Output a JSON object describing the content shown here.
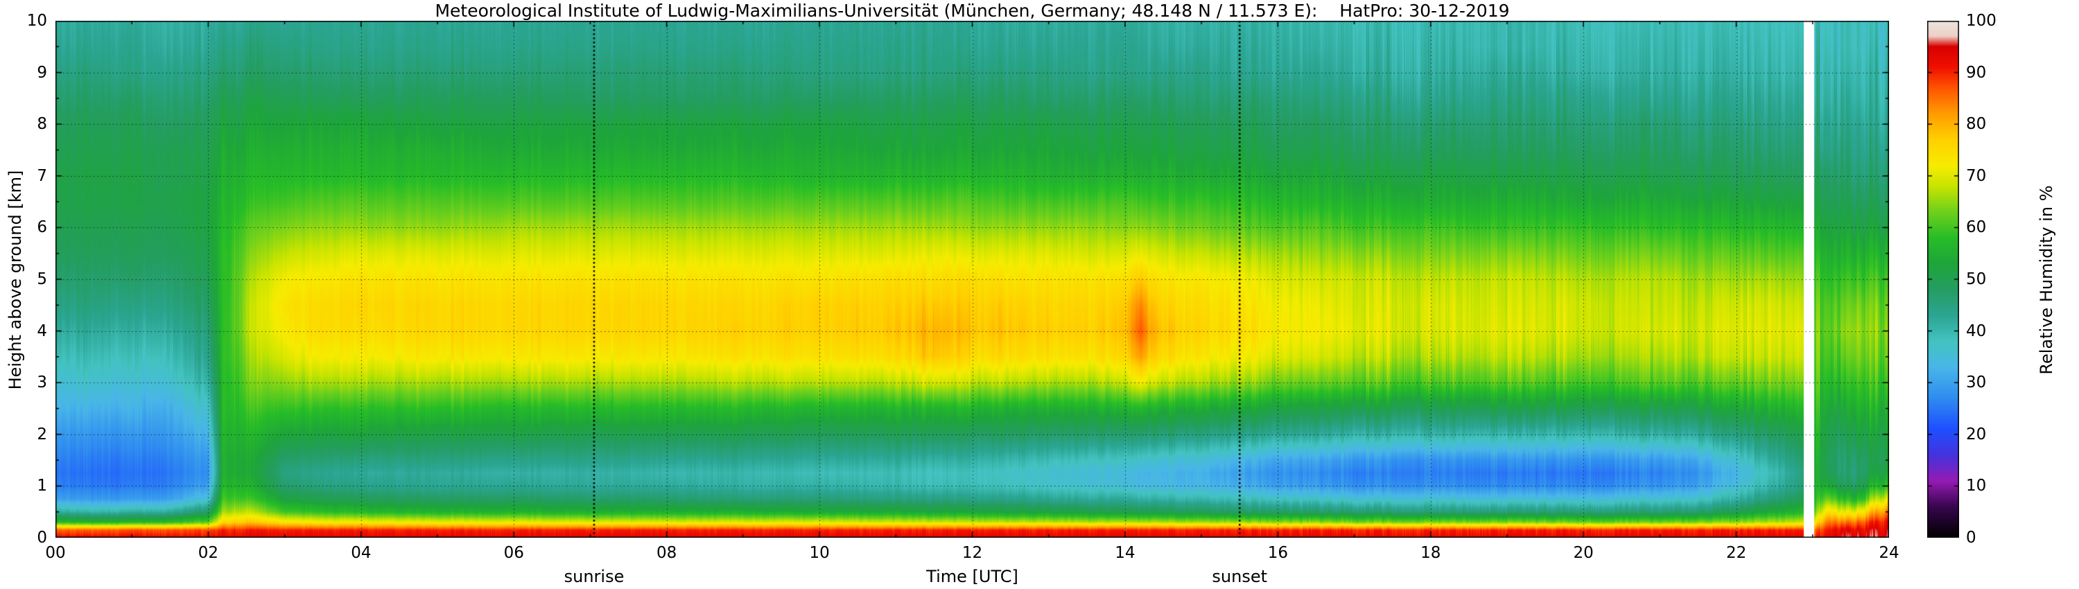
{
  "chart_data": {
    "type": "heatmap",
    "title": "Meteorological Institute of Ludwig-Maximilians-Universität (München, Germany; 48.148 N / 11.573 E):    HatPro: 30-12-2019",
    "xlabel": "Time [UTC]",
    "ylabel": "Height above ground [km]",
    "xlim": [
      0,
      24
    ],
    "ylim": [
      0,
      10
    ],
    "grid": {
      "x_lines": [
        2,
        4,
        6,
        8,
        10,
        12,
        14,
        16,
        18,
        20,
        22
      ],
      "y_lines": [
        1,
        2,
        3,
        4,
        5,
        6,
        7,
        8,
        9
      ]
    },
    "x_ticks": {
      "values": [
        0,
        2,
        4,
        6,
        8,
        10,
        12,
        14,
        16,
        18,
        20,
        22,
        24
      ],
      "labels": [
        "00",
        "02",
        "04",
        "06",
        "08",
        "10",
        "12",
        "14",
        "16",
        "18",
        "20",
        "22",
        "24"
      ]
    },
    "y_ticks": {
      "values": [
        0,
        1,
        2,
        3,
        4,
        5,
        6,
        7,
        8,
        9,
        10
      ],
      "labels": [
        "0",
        "1",
        "2",
        "3",
        "4",
        "5",
        "6",
        "7",
        "8",
        "9",
        "10"
      ]
    },
    "colorbar": {
      "label": "Relative Humidity in %",
      "min": 0,
      "max": 100,
      "ticks": [
        0,
        10,
        20,
        30,
        40,
        50,
        60,
        70,
        80,
        90,
        100
      ],
      "tick_labels": [
        "0",
        "10",
        "20",
        "30",
        "40",
        "50",
        "60",
        "70",
        "80",
        "90",
        "100"
      ]
    },
    "annotations": {
      "sunrise": {
        "label": "sunrise",
        "time": 7.05
      },
      "sunset": {
        "label": "sunset",
        "time": 15.5
      }
    },
    "missing_intervals": [
      [
        22.88,
        23.02
      ]
    ],
    "colormap_stops": [
      [
        0,
        "#000000"
      ],
      [
        6,
        "#38064e"
      ],
      [
        11,
        "#951bb4"
      ],
      [
        16,
        "#4433dd"
      ],
      [
        21,
        "#1f4fff"
      ],
      [
        27,
        "#2f8cf0"
      ],
      [
        33,
        "#49b6e8"
      ],
      [
        38,
        "#43c3c0"
      ],
      [
        43,
        "#2ba592"
      ],
      [
        48,
        "#259d62"
      ],
      [
        53,
        "#1ea53a"
      ],
      [
        58,
        "#27bd27"
      ],
      [
        63,
        "#6ed01c"
      ],
      [
        68,
        "#c8e400"
      ],
      [
        72,
        "#f7ec00"
      ],
      [
        77,
        "#ffd000"
      ],
      [
        82,
        "#ff9c00"
      ],
      [
        87,
        "#ff5400"
      ],
      [
        91,
        "#f01000"
      ],
      [
        95,
        "#d80000"
      ],
      [
        97,
        "#eecfc4"
      ],
      [
        100,
        "#e9e7e0"
      ]
    ],
    "heights_km": [
      0,
      0.15,
      0.3,
      0.5,
      0.75,
      1,
      1.25,
      1.5,
      2,
      2.5,
      3,
      3.5,
      4,
      4.5,
      5,
      5.5,
      6,
      6.5,
      7,
      7.5,
      8,
      8.5,
      9,
      9.5,
      10
    ],
    "times_utc": [
      0,
      0.5,
      1,
      1.5,
      2,
      2.2,
      2.5,
      3,
      3.5,
      4,
      5,
      6,
      7,
      8,
      9,
      10,
      11,
      11.5,
      12,
      12.5,
      13,
      13.5,
      14,
      14.2,
      14.4,
      15,
      15.5,
      16,
      16.5,
      17,
      18,
      19,
      20,
      21,
      21.5,
      22,
      22.5,
      22.85,
      23.05,
      23.2,
      23.4,
      23.6,
      23.8,
      24
    ],
    "rh_values": [
      [
        92,
        86,
        58,
        42,
        30,
        26,
        25,
        26,
        29,
        33,
        36,
        39,
        42,
        45,
        47,
        49,
        50,
        51,
        51,
        50,
        49,
        47,
        45,
        43,
        42
      ],
      [
        92,
        86,
        56,
        40,
        29,
        25,
        24,
        25,
        28,
        32,
        36,
        39,
        42,
        45,
        47,
        49,
        50,
        51,
        51,
        50,
        49,
        47,
        45,
        43,
        42
      ],
      [
        92,
        87,
        57,
        41,
        29,
        25,
        24,
        25,
        28,
        32,
        35,
        38,
        41,
        44,
        47,
        49,
        50,
        51,
        51,
        50,
        49,
        47,
        44,
        43,
        42
      ],
      [
        92,
        87,
        58,
        42,
        30,
        26,
        25,
        26,
        29,
        32,
        36,
        39,
        42,
        45,
        47,
        49,
        50,
        51,
        50,
        50,
        48,
        46,
        44,
        42,
        41
      ],
      [
        92,
        88,
        62,
        48,
        36,
        30,
        28,
        29,
        33,
        37,
        41,
        44,
        46,
        48,
        50,
        51,
        52,
        52,
        51,
        50,
        49,
        47,
        45,
        43,
        42
      ],
      [
        93,
        90,
        76,
        66,
        60,
        57,
        55,
        55,
        56,
        57,
        57,
        58,
        58,
        58,
        58,
        58,
        57,
        56,
        55,
        54,
        52,
        50,
        47,
        45,
        43
      ],
      [
        93,
        90,
        78,
        68,
        60,
        56,
        54,
        54,
        56,
        59,
        62,
        64,
        66,
        66,
        65,
        63,
        61,
        58,
        56,
        54,
        52,
        50,
        47,
        45,
        43
      ],
      [
        93,
        90,
        74,
        60,
        52,
        47,
        45,
        47,
        53,
        59,
        65,
        70,
        73,
        74,
        72,
        68,
        64,
        60,
        57,
        55,
        53,
        50,
        47,
        45,
        43
      ],
      [
        93,
        90,
        72,
        58,
        50,
        45,
        43,
        46,
        52,
        58,
        66,
        72,
        75,
        75,
        73,
        69,
        65,
        61,
        57,
        55,
        53,
        49,
        46,
        44,
        43
      ],
      [
        93,
        90,
        72,
        57,
        49,
        44,
        42,
        45,
        52,
        58,
        66,
        72,
        75,
        76,
        74,
        70,
        65,
        61,
        57,
        55,
        53,
        49,
        46,
        44,
        43
      ],
      [
        93,
        90,
        71,
        56,
        48,
        43,
        42,
        45,
        51,
        58,
        66,
        73,
        76,
        76,
        74,
        70,
        65,
        61,
        57,
        55,
        52,
        49,
        46,
        44,
        43
      ],
      [
        93,
        90,
        71,
        56,
        48,
        43,
        41,
        44,
        51,
        57,
        66,
        73,
        76,
        76,
        74,
        70,
        66,
        61,
        57,
        54,
        52,
        49,
        46,
        44,
        43
      ],
      [
        93,
        90,
        70,
        55,
        47,
        42,
        41,
        44,
        50,
        57,
        66,
        73,
        76,
        76,
        74,
        70,
        66,
        61,
        57,
        54,
        52,
        48,
        46,
        44,
        43
      ],
      [
        93,
        90,
        70,
        55,
        47,
        42,
        40,
        43,
        50,
        57,
        66,
        73,
        76,
        76,
        74,
        70,
        66,
        61,
        57,
        54,
        52,
        48,
        46,
        44,
        43
      ],
      [
        93,
        90,
        70,
        55,
        46,
        41,
        40,
        43,
        50,
        57,
        67,
        74,
        77,
        76,
        74,
        70,
        66,
        61,
        57,
        54,
        52,
        48,
        46,
        44,
        43
      ],
      [
        93,
        90,
        70,
        54,
        46,
        41,
        39,
        42,
        49,
        56,
        67,
        74,
        77,
        77,
        74,
        70,
        66,
        61,
        56,
        54,
        52,
        48,
        45,
        44,
        43
      ],
      [
        93,
        90,
        69,
        54,
        45,
        40,
        39,
        42,
        49,
        56,
        67,
        75,
        78,
        77,
        75,
        70,
        66,
        61,
        56,
        53,
        51,
        48,
        45,
        44,
        43
      ],
      [
        93,
        90,
        69,
        53,
        45,
        39,
        38,
        41,
        49,
        56,
        69,
        78,
        80,
        78,
        75,
        71,
        66,
        61,
        56,
        53,
        51,
        48,
        45,
        44,
        43
      ],
      [
        93,
        90,
        68,
        53,
        44,
        39,
        38,
        41,
        48,
        56,
        67,
        75,
        78,
        77,
        75,
        70,
        65,
        61,
        56,
        53,
        51,
        48,
        45,
        43,
        42
      ],
      [
        93,
        90,
        68,
        52,
        44,
        38,
        37,
        40,
        48,
        55,
        67,
        75,
        78,
        77,
        74,
        70,
        65,
        60,
        56,
        53,
        51,
        48,
        45,
        43,
        42
      ],
      [
        93,
        90,
        68,
        52,
        43,
        37,
        36,
        39,
        47,
        55,
        66,
        74,
        77,
        76,
        74,
        70,
        65,
        60,
        55,
        53,
        51,
        47,
        45,
        43,
        42
      ],
      [
        93,
        90,
        67,
        51,
        42,
        36,
        35,
        38,
        47,
        55,
        66,
        74,
        77,
        76,
        74,
        69,
        65,
        60,
        55,
        52,
        50,
        47,
        44,
        43,
        42
      ],
      [
        93,
        90,
        67,
        50,
        42,
        35,
        34,
        37,
        46,
        55,
        67,
        75,
        78,
        77,
        74,
        69,
        64,
        60,
        55,
        52,
        50,
        47,
        44,
        43,
        42
      ],
      [
        93,
        90,
        67,
        50,
        41,
        34,
        33,
        37,
        47,
        57,
        72,
        82,
        87,
        84,
        78,
        71,
        65,
        60,
        55,
        52,
        50,
        47,
        44,
        43,
        42
      ],
      [
        93,
        90,
        67,
        50,
        41,
        34,
        33,
        36,
        46,
        55,
        68,
        76,
        79,
        77,
        74,
        69,
        64,
        59,
        55,
        52,
        50,
        47,
        44,
        42,
        41
      ],
      [
        93,
        90,
        66,
        49,
        40,
        33,
        32,
        35,
        45,
        54,
        66,
        73,
        76,
        75,
        73,
        68,
        63,
        59,
        54,
        51,
        49,
        46,
        44,
        42,
        41
      ],
      [
        93,
        90,
        66,
        48,
        39,
        32,
        30,
        33,
        44,
        53,
        65,
        72,
        75,
        74,
        72,
        67,
        62,
        58,
        54,
        51,
        49,
        46,
        43,
        42,
        41
      ],
      [
        93,
        90,
        65,
        48,
        38,
        30,
        28,
        31,
        43,
        52,
        63,
        70,
        73,
        72,
        70,
        66,
        61,
        57,
        53,
        50,
        48,
        46,
        43,
        42,
        41
      ],
      [
        93,
        90,
        65,
        47,
        37,
        29,
        27,
        30,
        42,
        51,
        62,
        69,
        72,
        71,
        69,
        65,
        61,
        56,
        53,
        50,
        48,
        45,
        43,
        41,
        40
      ],
      [
        93,
        90,
        64,
        47,
        36,
        28,
        26,
        29,
        41,
        51,
        62,
        68,
        71,
        70,
        69,
        65,
        60,
        56,
        52,
        49,
        47,
        45,
        42,
        41,
        40
      ],
      [
        93,
        90,
        64,
        46,
        36,
        28,
        26,
        28,
        41,
        50,
        61,
        67,
        70,
        70,
        68,
        64,
        60,
        55,
        52,
        49,
        47,
        44,
        42,
        41,
        40
      ],
      [
        93,
        90,
        64,
        46,
        35,
        27,
        25,
        28,
        40,
        50,
        61,
        67,
        70,
        69,
        68,
        64,
        59,
        55,
        51,
        48,
        46,
        44,
        42,
        40,
        40
      ],
      [
        93,
        90,
        63,
        46,
        35,
        27,
        25,
        28,
        40,
        50,
        60,
        66,
        69,
        69,
        67,
        63,
        59,
        54,
        51,
        48,
        46,
        44,
        41,
        40,
        39
      ],
      [
        93,
        90,
        63,
        46,
        36,
        28,
        26,
        29,
        41,
        50,
        61,
        66,
        69,
        68,
        67,
        63,
        58,
        54,
        50,
        48,
        46,
        43,
        41,
        40,
        39
      ],
      [
        93,
        90,
        64,
        47,
        37,
        30,
        28,
        31,
        42,
        51,
        61,
        67,
        69,
        68,
        66,
        62,
        58,
        53,
        50,
        47,
        45,
        43,
        41,
        40,
        39
      ],
      [
        93,
        90,
        65,
        50,
        41,
        35,
        33,
        36,
        45,
        53,
        62,
        68,
        70,
        69,
        66,
        62,
        57,
        53,
        49,
        47,
        45,
        43,
        41,
        40,
        39
      ],
      [
        93,
        90,
        67,
        54,
        46,
        41,
        39,
        42,
        48,
        55,
        63,
        68,
        70,
        69,
        66,
        61,
        57,
        52,
        49,
        46,
        44,
        42,
        40,
        39,
        38
      ],
      [
        93,
        90,
        68,
        56,
        49,
        45,
        44,
        46,
        50,
        56,
        63,
        68,
        70,
        68,
        65,
        61,
        56,
        52,
        48,
        46,
        44,
        42,
        40,
        39,
        38
      ],
      [
        90,
        86,
        74,
        64,
        58,
        55,
        54,
        55,
        56,
        58,
        60,
        62,
        63,
        62,
        60,
        57,
        54,
        51,
        49,
        46,
        44,
        42,
        41,
        40,
        39
      ],
      [
        94,
        92,
        86,
        76,
        64,
        55,
        51,
        50,
        51,
        54,
        58,
        61,
        63,
        62,
        59,
        56,
        53,
        50,
        48,
        45,
        44,
        42,
        41,
        40,
        39
      ],
      [
        95,
        93,
        84,
        70,
        57,
        48,
        45,
        45,
        48,
        52,
        57,
        61,
        64,
        62,
        59,
        55,
        52,
        49,
        47,
        45,
        43,
        42,
        40,
        39,
        39
      ],
      [
        95,
        93,
        86,
        72,
        57,
        49,
        47,
        48,
        52,
        56,
        60,
        64,
        66,
        64,
        60,
        56,
        52,
        49,
        46,
        44,
        43,
        41,
        40,
        39,
        39
      ],
      [
        95,
        94,
        90,
        80,
        66,
        56,
        51,
        49,
        51,
        55,
        59,
        62,
        64,
        63,
        60,
        56,
        52,
        49,
        46,
        44,
        42,
        41,
        40,
        39,
        38
      ],
      [
        95,
        94,
        92,
        84,
        70,
        58,
        53,
        51,
        52,
        55,
        59,
        63,
        65,
        63,
        60,
        56,
        52,
        48,
        46,
        44,
        42,
        41,
        40,
        39,
        38
      ]
    ]
  }
}
